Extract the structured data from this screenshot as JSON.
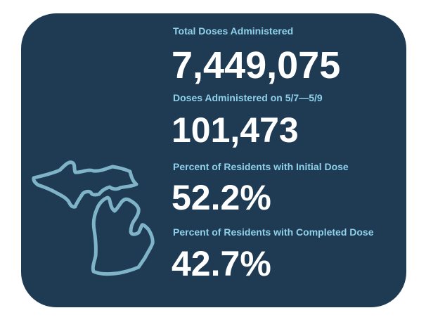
{
  "colors": {
    "card_background": "#1f3b53",
    "label_color": "#8fd0ea",
    "value_color": "#ffffff",
    "map_outline": "#7fb4c8"
  },
  "map": {
    "icon": "michigan-outline-icon"
  },
  "stats": [
    {
      "label": "Total Doses Administered",
      "value": "7,449,075"
    },
    {
      "label": "Doses Administered on 5/7—5/9",
      "value": "101,473"
    },
    {
      "label": "Percent of Residents with Initial Dose",
      "value": "52.2%"
    },
    {
      "label": "Percent of Residents with Completed Dose",
      "value": "42.7%"
    }
  ]
}
